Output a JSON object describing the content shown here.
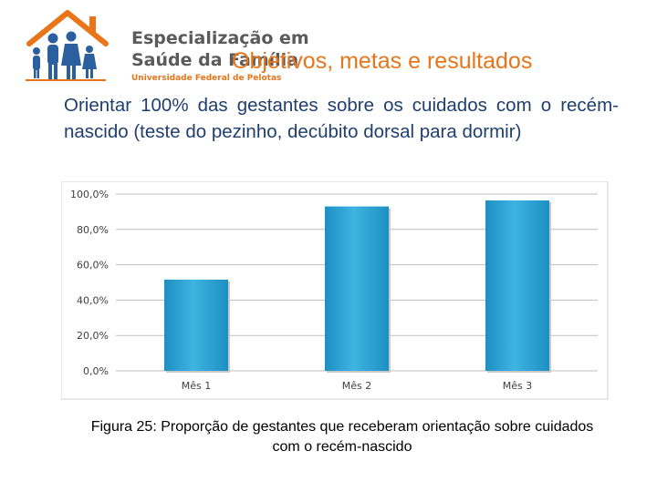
{
  "logo": {
    "line1": "Especialização em",
    "line2": "Saúde da Família",
    "line3": "Universidade Federal de Pelotas",
    "icon": "family-house-icon",
    "colors": {
      "roof": "#e8751a",
      "figures": "#2b5f9e",
      "text": "#5a5a5a"
    }
  },
  "slide": {
    "title": "Objetivos, metas e resultados",
    "body": "Orientar 100% das gestantes sobre os cuidados com o recém-nascido (teste do pezinho, decúbito dorsal para dormir)",
    "caption": "Figura 25: Proporção de gestantes que receberam orientação sobre cuidados com o recém-nascido"
  },
  "colors": {
    "title": "#e8751a",
    "body_text": "#1f3f6e",
    "bar": "#3db4e2",
    "bar_dark": "#1e8fc2"
  },
  "chart_data": {
    "type": "bar",
    "categories": [
      "Mês 1",
      "Mês 2",
      "Mês 3"
    ],
    "values": [
      51.6,
      93.0,
      96.4
    ],
    "ylim": [
      0,
      100
    ],
    "y_ticks": [
      "0,0%",
      "20,0%",
      "40,0%",
      "60,0%",
      "80,0%",
      "100,0%"
    ],
    "y_tick_values": [
      0,
      20,
      40,
      60,
      80,
      100
    ],
    "grid": true,
    "legend": "none",
    "title": "",
    "xlabel": "",
    "ylabel": ""
  }
}
